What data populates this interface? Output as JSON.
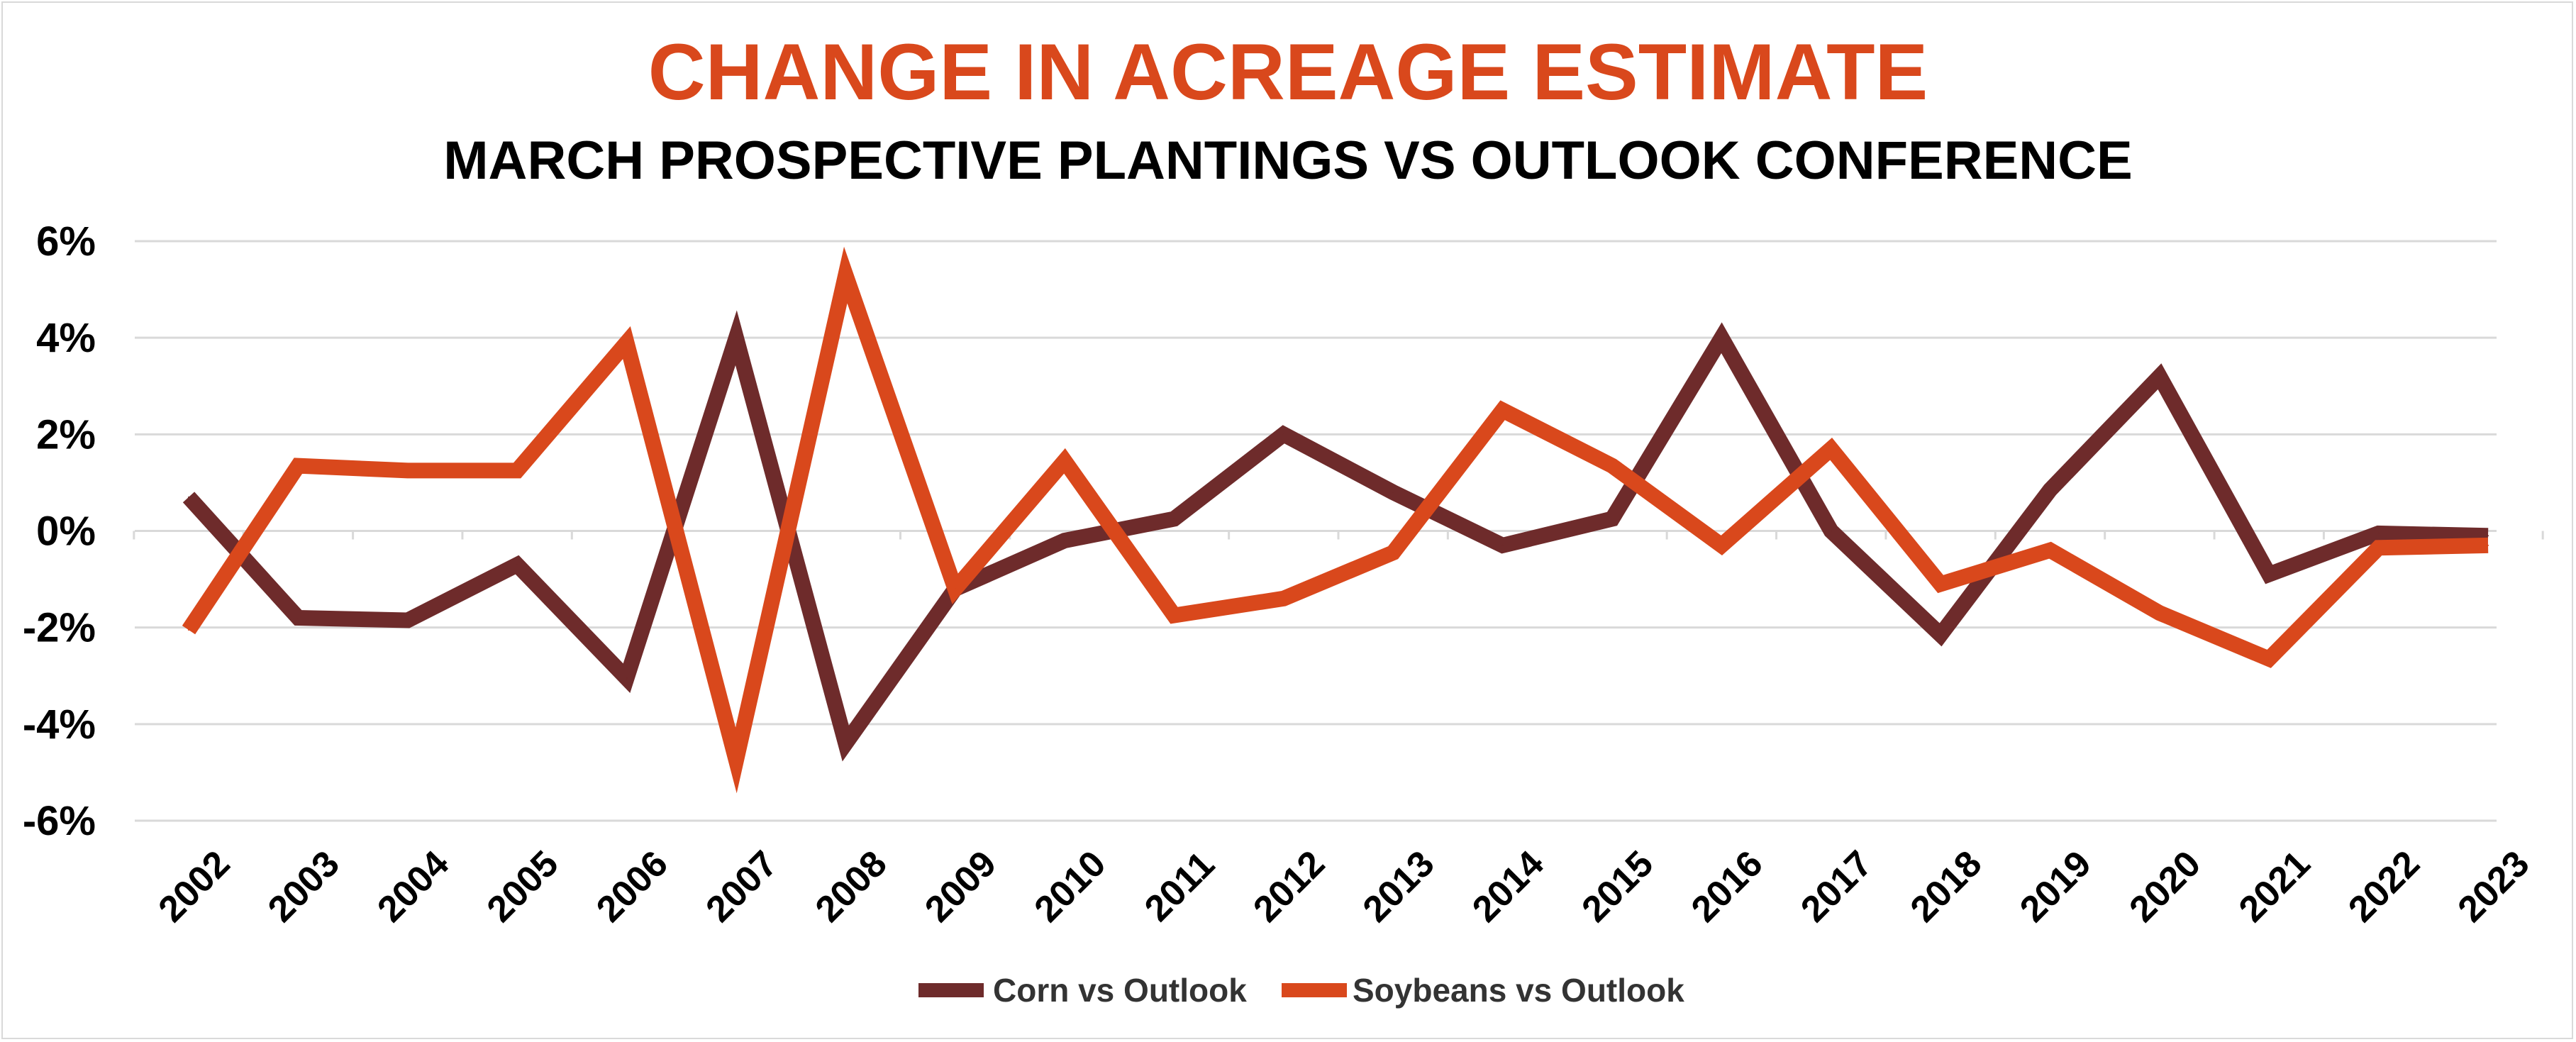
{
  "chart_data": {
    "type": "line",
    "title": "CHANGE IN ACREAGE ESTIMATE",
    "subtitle": "MARCH PROSPECTIVE PLANTINGS VS OUTLOOK CONFERENCE",
    "xlabel": "",
    "ylabel": "",
    "ylim": [
      -6,
      6
    ],
    "yticks": [
      6,
      4,
      2,
      0,
      -2,
      -4,
      -6
    ],
    "ytick_labels": [
      "6%",
      "4%",
      "2%",
      "0%",
      "-2%",
      "-4%",
      "-6%"
    ],
    "grid": true,
    "legend_position": "bottom",
    "categories": [
      "2002",
      "2003",
      "2004",
      "2005",
      "2006",
      "2007",
      "2008",
      "2009",
      "2010",
      "2011",
      "2012",
      "2013",
      "2014",
      "2015",
      "2016",
      "2017",
      "2018",
      "2019",
      "2020",
      "2021",
      "2022",
      "2023"
    ],
    "series": [
      {
        "name": "Corn vs Outlook",
        "color": "#6e2b2b",
        "values": [
          0.7,
          -1.8,
          -1.85,
          -0.7,
          -3.05,
          4.0,
          -4.4,
          -1.2,
          -0.2,
          0.25,
          2.0,
          0.8,
          -0.3,
          0.25,
          4.0,
          0.0,
          -2.15,
          0.85,
          3.2,
          -0.9,
          -0.05,
          -0.1
        ]
      },
      {
        "name": "Soybeans vs Outlook",
        "color": "#d9481c",
        "values": [
          -2.05,
          1.35,
          1.25,
          1.25,
          3.9,
          -4.75,
          5.3,
          -1.2,
          1.45,
          -1.75,
          -1.4,
          -0.45,
          2.5,
          1.35,
          -0.3,
          1.7,
          -1.1,
          -0.4,
          -1.7,
          -2.65,
          -0.35,
          -0.3
        ]
      }
    ]
  }
}
